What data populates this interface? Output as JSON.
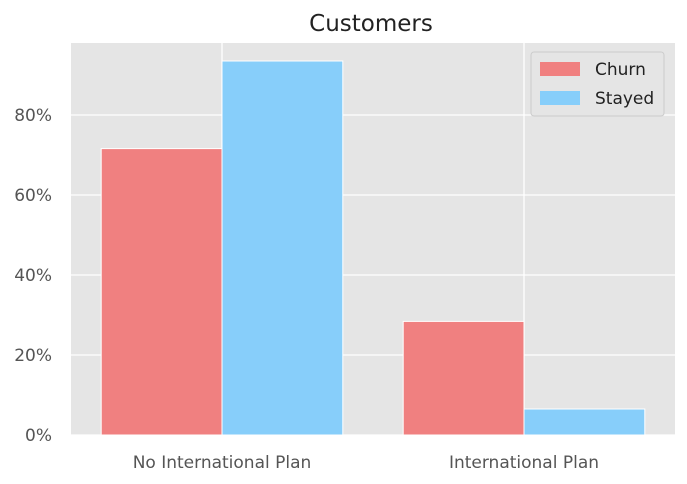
{
  "chart_data": {
    "type": "bar",
    "title": "Customers",
    "xlabel": "",
    "ylabel": "",
    "categories": [
      "No International Plan",
      "International Plan"
    ],
    "series": [
      {
        "name": "Churn",
        "values": [
          71.6,
          28.4
        ],
        "color": "#f08080"
      },
      {
        "name": "Stayed",
        "values": [
          93.5,
          6.5
        ],
        "color": "#87cefa"
      }
    ],
    "ylim": [
      0,
      98
    ],
    "yticks": [
      0,
      20,
      40,
      60,
      80
    ],
    "ytick_labels": [
      "0%",
      "20%",
      "40%",
      "60%",
      "80%"
    ],
    "grid": true,
    "legend_position": "top-right",
    "colors": {
      "background": "#e5e5e5",
      "grid": "#ffffff"
    }
  }
}
